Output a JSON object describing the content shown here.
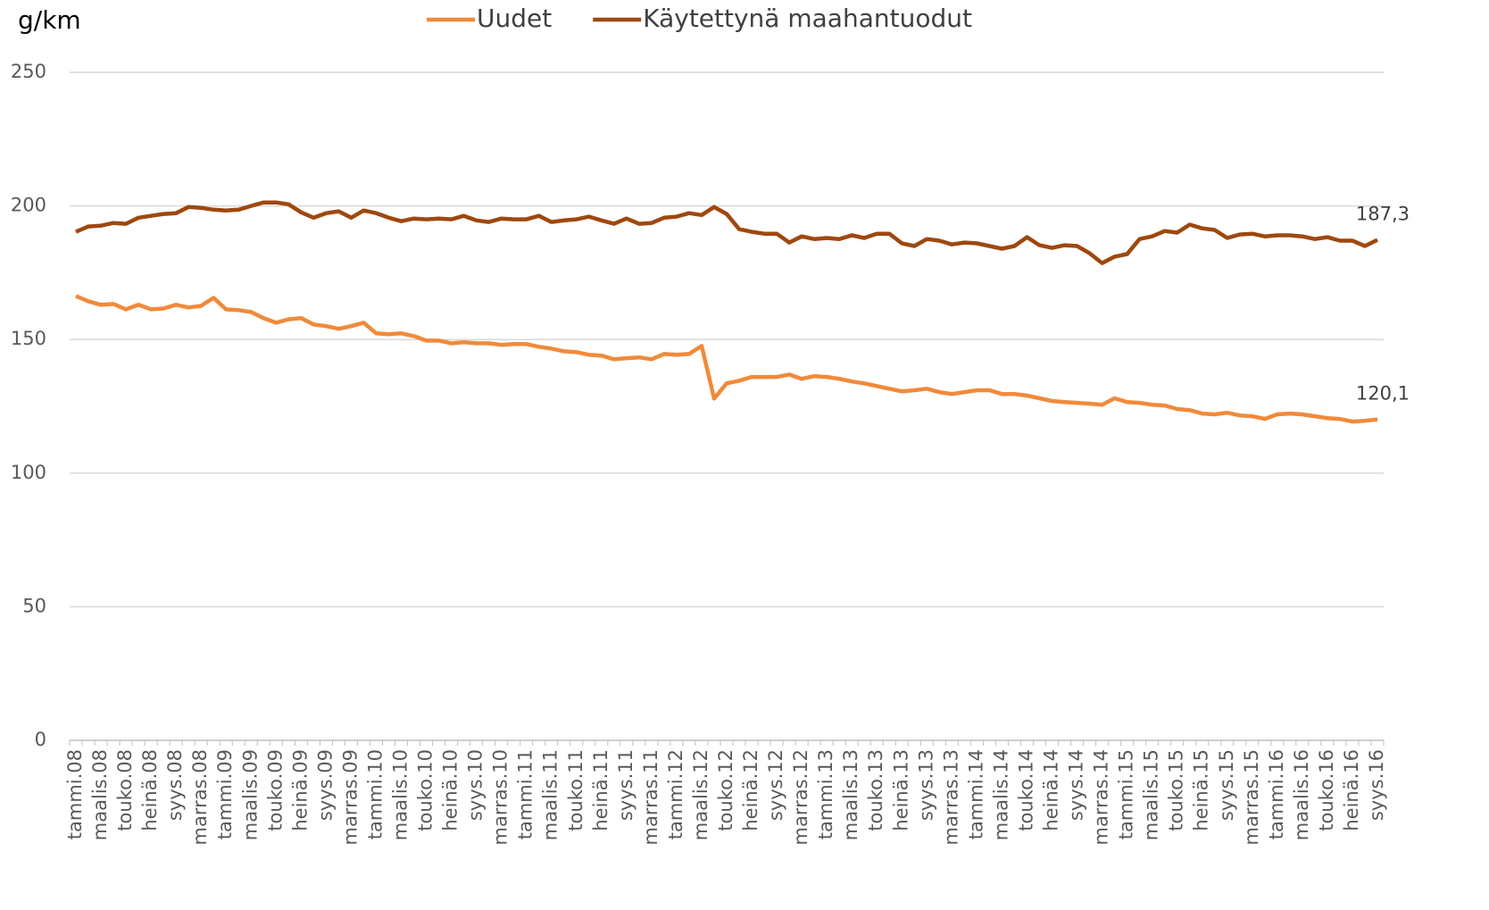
{
  "chart_data": {
    "type": "line",
    "y_label": "g/km",
    "categories": [
      "tammi.08",
      null,
      "maalis.08",
      null,
      "touko.08",
      null,
      "heinä.08",
      null,
      "syys.08",
      null,
      "marras.08",
      null,
      "tammi.09",
      null,
      "maalis.09",
      null,
      "touko.09",
      null,
      "heinä.09",
      null,
      "syys.09",
      null,
      "marras.09",
      null,
      "tammi.10",
      null,
      "maalis.10",
      null,
      "touko.10",
      null,
      "heinä.10",
      null,
      "syys.10",
      null,
      "marras.10",
      null,
      "tammi.11",
      null,
      "maalis.11",
      null,
      "touko.11",
      null,
      "heinä.11",
      null,
      "syys.11",
      null,
      "marras.11",
      null,
      "tammi.12",
      null,
      "maalis.12",
      null,
      "touko.12",
      null,
      "heinä.12",
      null,
      "syys.12",
      null,
      "marras.12",
      null,
      "tammi.13",
      null,
      "maalis.13",
      null,
      "touko.13",
      null,
      "heinä.13",
      null,
      "syys.13",
      null,
      "marras.13",
      null,
      "tammi.14",
      null,
      "maalis.14",
      null,
      "touko.14",
      null,
      "heinä.14",
      null,
      "syys.14",
      null,
      "marras.14",
      null,
      "tammi.15",
      null,
      "maalis.15",
      null,
      "touko.15",
      null,
      "heinä.15",
      null,
      "syys.15",
      null,
      "marras.15",
      null,
      "tammi.16",
      null,
      "maalis.16",
      null,
      "touko.16",
      null,
      "heinä.16",
      null,
      "syys.16"
    ],
    "series": [
      {
        "name": "Uudet",
        "color": "#f08a3a",
        "values": [
          166.3,
          164.3,
          163,
          163.3,
          161.3,
          163,
          161.3,
          161.6,
          163,
          162,
          162.6,
          165.6,
          161.3,
          161,
          160.3,
          158,
          156.3,
          157.6,
          158,
          155.6,
          155,
          154,
          155,
          156.3,
          152.3,
          152,
          152.3,
          151.3,
          149.6,
          149.6,
          148.6,
          149,
          148.6,
          148.6,
          148,
          148.3,
          148.3,
          147.3,
          146.6,
          145.6,
          145.3,
          144.3,
          144,
          142.6,
          143,
          143.3,
          142.6,
          144.6,
          144.3,
          144.6,
          147.6,
          127.9,
          133.6,
          134.6,
          136,
          136,
          136,
          136.9,
          135.3,
          136.3,
          136,
          135.3,
          134.3,
          133.6,
          132.6,
          131.6,
          130.6,
          131,
          131.6,
          130.3,
          129.6,
          130.3,
          131,
          131,
          129.6,
          129.6,
          129,
          128,
          127,
          126.6,
          126.3,
          126,
          125.6,
          128,
          126.6,
          126.3,
          125.6,
          125.3,
          124,
          123.6,
          122.3,
          122,
          122.6,
          121.6,
          121.3,
          120.3,
          122,
          122.3,
          122,
          121.3,
          120.6,
          120.3,
          119.3,
          119.6,
          120.1
        ],
        "value_labels": [
          null,
          null,
          null,
          null,
          null,
          null,
          null,
          null,
          null,
          null,
          null,
          null,
          null,
          null,
          null,
          null,
          null,
          null,
          null,
          null,
          null,
          null,
          null,
          null,
          null,
          null,
          null,
          null,
          null,
          null,
          null,
          null,
          null,
          null,
          null,
          null,
          null,
          null,
          null,
          null,
          null,
          null,
          null,
          null,
          null,
          null,
          null,
          null,
          null,
          null,
          null,
          null,
          null,
          null,
          null,
          null,
          null,
          null,
          null,
          null,
          null,
          null,
          null,
          null,
          null,
          null,
          null,
          null,
          null,
          null,
          null,
          null,
          null,
          null,
          null,
          null,
          null,
          null,
          null,
          null,
          null,
          null,
          null,
          null,
          null,
          null,
          null,
          null,
          null,
          null,
          null,
          null,
          null,
          null,
          null,
          null,
          null,
          null,
          null,
          null,
          null,
          null,
          null,
          null,
          "120,1"
        ]
      },
      {
        "name": "Käytettynä maahantuodut",
        "color": "#9e480e",
        "values": [
          190.3,
          192.3,
          192.6,
          193.6,
          193.3,
          195.6,
          196.3,
          197,
          197.3,
          199.6,
          199.3,
          198.6,
          198.3,
          198.6,
          200,
          201.3,
          201.3,
          200.6,
          197.6,
          195.6,
          197.3,
          198,
          195.6,
          198.3,
          197.3,
          195.6,
          194.3,
          195.3,
          195,
          195.3,
          195,
          196.3,
          194.6,
          194,
          195.3,
          195,
          195,
          196.3,
          194,
          194.6,
          195,
          196,
          194.6,
          193.3,
          195.3,
          193.3,
          193.6,
          195.6,
          196,
          197.3,
          196.6,
          199.6,
          197,
          191.3,
          190.3,
          189.6,
          189.6,
          186.3,
          188.6,
          187.6,
          188,
          187.6,
          189,
          188,
          189.6,
          189.6,
          186,
          185,
          187.6,
          187,
          185.6,
          186.3,
          186,
          185,
          184,
          185,
          188.3,
          185.3,
          184.3,
          185.3,
          185,
          182.3,
          178.6,
          181,
          182,
          187.6,
          188.6,
          190.6,
          190,
          193,
          191.6,
          191,
          188,
          189.3,
          189.6,
          188.6,
          189,
          189,
          188.6,
          187.6,
          188.3,
          187,
          187,
          185,
          187.3
        ],
        "value_labels": [
          null,
          null,
          null,
          null,
          null,
          null,
          null,
          null,
          null,
          null,
          null,
          null,
          null,
          null,
          null,
          null,
          null,
          null,
          null,
          null,
          null,
          null,
          null,
          null,
          null,
          null,
          null,
          null,
          null,
          null,
          null,
          null,
          null,
          null,
          null,
          null,
          null,
          null,
          null,
          null,
          null,
          null,
          null,
          null,
          null,
          null,
          null,
          null,
          null,
          null,
          null,
          null,
          null,
          null,
          null,
          null,
          null,
          null,
          null,
          null,
          null,
          null,
          null,
          null,
          null,
          null,
          null,
          null,
          null,
          null,
          null,
          null,
          null,
          null,
          null,
          null,
          null,
          null,
          null,
          null,
          null,
          null,
          null,
          null,
          null,
          null,
          null,
          null,
          null,
          null,
          null,
          null,
          null,
          null,
          null,
          null,
          null,
          null,
          null,
          null,
          null,
          null,
          null,
          null,
          "187,3"
        ]
      }
    ],
    "ylim": [
      0,
      250
    ],
    "yticks": [
      0,
      50,
      100,
      150,
      200,
      250
    ],
    "grid": true,
    "legend": "top"
  }
}
